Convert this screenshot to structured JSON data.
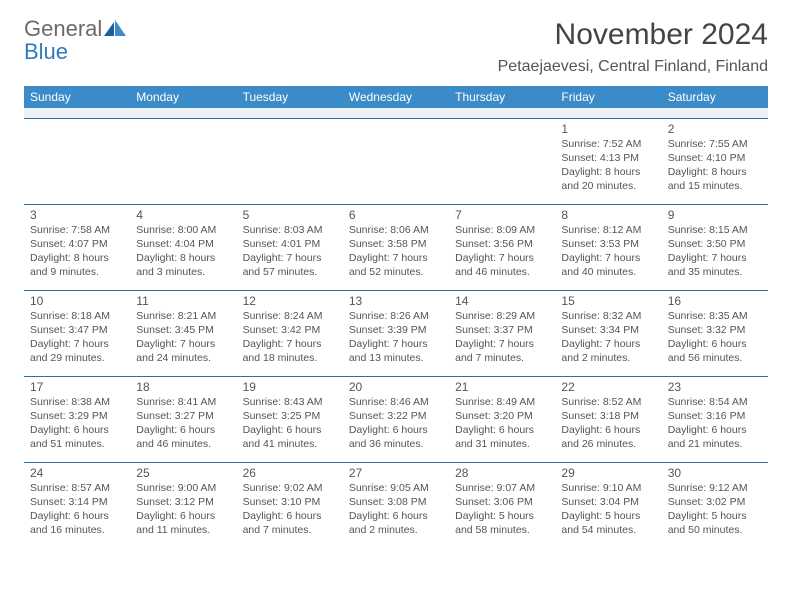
{
  "brand": {
    "part1": "General",
    "part2": "Blue"
  },
  "title": "November 2024",
  "location": "Petaejaevesi, Central Finland, Finland",
  "colors": {
    "header_bg": "#3b8bc8",
    "cell_border": "#2f6fa8",
    "spacer_bg": "#eef1f3",
    "text": "#555555",
    "brand_gray": "#6b6b6b",
    "brand_blue": "#2f7bbf"
  },
  "day_headers": [
    "Sunday",
    "Monday",
    "Tuesday",
    "Wednesday",
    "Thursday",
    "Friday",
    "Saturday"
  ],
  "weeks": [
    [
      null,
      null,
      null,
      null,
      null,
      {
        "n": "1",
        "sr": "Sunrise: 7:52 AM",
        "ss": "Sunset: 4:13 PM",
        "d1": "Daylight: 8 hours",
        "d2": "and 20 minutes."
      },
      {
        "n": "2",
        "sr": "Sunrise: 7:55 AM",
        "ss": "Sunset: 4:10 PM",
        "d1": "Daylight: 8 hours",
        "d2": "and 15 minutes."
      }
    ],
    [
      {
        "n": "3",
        "sr": "Sunrise: 7:58 AM",
        "ss": "Sunset: 4:07 PM",
        "d1": "Daylight: 8 hours",
        "d2": "and 9 minutes."
      },
      {
        "n": "4",
        "sr": "Sunrise: 8:00 AM",
        "ss": "Sunset: 4:04 PM",
        "d1": "Daylight: 8 hours",
        "d2": "and 3 minutes."
      },
      {
        "n": "5",
        "sr": "Sunrise: 8:03 AM",
        "ss": "Sunset: 4:01 PM",
        "d1": "Daylight: 7 hours",
        "d2": "and 57 minutes."
      },
      {
        "n": "6",
        "sr": "Sunrise: 8:06 AM",
        "ss": "Sunset: 3:58 PM",
        "d1": "Daylight: 7 hours",
        "d2": "and 52 minutes."
      },
      {
        "n": "7",
        "sr": "Sunrise: 8:09 AM",
        "ss": "Sunset: 3:56 PM",
        "d1": "Daylight: 7 hours",
        "d2": "and 46 minutes."
      },
      {
        "n": "8",
        "sr": "Sunrise: 8:12 AM",
        "ss": "Sunset: 3:53 PM",
        "d1": "Daylight: 7 hours",
        "d2": "and 40 minutes."
      },
      {
        "n": "9",
        "sr": "Sunrise: 8:15 AM",
        "ss": "Sunset: 3:50 PM",
        "d1": "Daylight: 7 hours",
        "d2": "and 35 minutes."
      }
    ],
    [
      {
        "n": "10",
        "sr": "Sunrise: 8:18 AM",
        "ss": "Sunset: 3:47 PM",
        "d1": "Daylight: 7 hours",
        "d2": "and 29 minutes."
      },
      {
        "n": "11",
        "sr": "Sunrise: 8:21 AM",
        "ss": "Sunset: 3:45 PM",
        "d1": "Daylight: 7 hours",
        "d2": "and 24 minutes."
      },
      {
        "n": "12",
        "sr": "Sunrise: 8:24 AM",
        "ss": "Sunset: 3:42 PM",
        "d1": "Daylight: 7 hours",
        "d2": "and 18 minutes."
      },
      {
        "n": "13",
        "sr": "Sunrise: 8:26 AM",
        "ss": "Sunset: 3:39 PM",
        "d1": "Daylight: 7 hours",
        "d2": "and 13 minutes."
      },
      {
        "n": "14",
        "sr": "Sunrise: 8:29 AM",
        "ss": "Sunset: 3:37 PM",
        "d1": "Daylight: 7 hours",
        "d2": "and 7 minutes."
      },
      {
        "n": "15",
        "sr": "Sunrise: 8:32 AM",
        "ss": "Sunset: 3:34 PM",
        "d1": "Daylight: 7 hours",
        "d2": "and 2 minutes."
      },
      {
        "n": "16",
        "sr": "Sunrise: 8:35 AM",
        "ss": "Sunset: 3:32 PM",
        "d1": "Daylight: 6 hours",
        "d2": "and 56 minutes."
      }
    ],
    [
      {
        "n": "17",
        "sr": "Sunrise: 8:38 AM",
        "ss": "Sunset: 3:29 PM",
        "d1": "Daylight: 6 hours",
        "d2": "and 51 minutes."
      },
      {
        "n": "18",
        "sr": "Sunrise: 8:41 AM",
        "ss": "Sunset: 3:27 PM",
        "d1": "Daylight: 6 hours",
        "d2": "and 46 minutes."
      },
      {
        "n": "19",
        "sr": "Sunrise: 8:43 AM",
        "ss": "Sunset: 3:25 PM",
        "d1": "Daylight: 6 hours",
        "d2": "and 41 minutes."
      },
      {
        "n": "20",
        "sr": "Sunrise: 8:46 AM",
        "ss": "Sunset: 3:22 PM",
        "d1": "Daylight: 6 hours",
        "d2": "and 36 minutes."
      },
      {
        "n": "21",
        "sr": "Sunrise: 8:49 AM",
        "ss": "Sunset: 3:20 PM",
        "d1": "Daylight: 6 hours",
        "d2": "and 31 minutes."
      },
      {
        "n": "22",
        "sr": "Sunrise: 8:52 AM",
        "ss": "Sunset: 3:18 PM",
        "d1": "Daylight: 6 hours",
        "d2": "and 26 minutes."
      },
      {
        "n": "23",
        "sr": "Sunrise: 8:54 AM",
        "ss": "Sunset: 3:16 PM",
        "d1": "Daylight: 6 hours",
        "d2": "and 21 minutes."
      }
    ],
    [
      {
        "n": "24",
        "sr": "Sunrise: 8:57 AM",
        "ss": "Sunset: 3:14 PM",
        "d1": "Daylight: 6 hours",
        "d2": "and 16 minutes."
      },
      {
        "n": "25",
        "sr": "Sunrise: 9:00 AM",
        "ss": "Sunset: 3:12 PM",
        "d1": "Daylight: 6 hours",
        "d2": "and 11 minutes."
      },
      {
        "n": "26",
        "sr": "Sunrise: 9:02 AM",
        "ss": "Sunset: 3:10 PM",
        "d1": "Daylight: 6 hours",
        "d2": "and 7 minutes."
      },
      {
        "n": "27",
        "sr": "Sunrise: 9:05 AM",
        "ss": "Sunset: 3:08 PM",
        "d1": "Daylight: 6 hours",
        "d2": "and 2 minutes."
      },
      {
        "n": "28",
        "sr": "Sunrise: 9:07 AM",
        "ss": "Sunset: 3:06 PM",
        "d1": "Daylight: 5 hours",
        "d2": "and 58 minutes."
      },
      {
        "n": "29",
        "sr": "Sunrise: 9:10 AM",
        "ss": "Sunset: 3:04 PM",
        "d1": "Daylight: 5 hours",
        "d2": "and 54 minutes."
      },
      {
        "n": "30",
        "sr": "Sunrise: 9:12 AM",
        "ss": "Sunset: 3:02 PM",
        "d1": "Daylight: 5 hours",
        "d2": "and 50 minutes."
      }
    ]
  ]
}
